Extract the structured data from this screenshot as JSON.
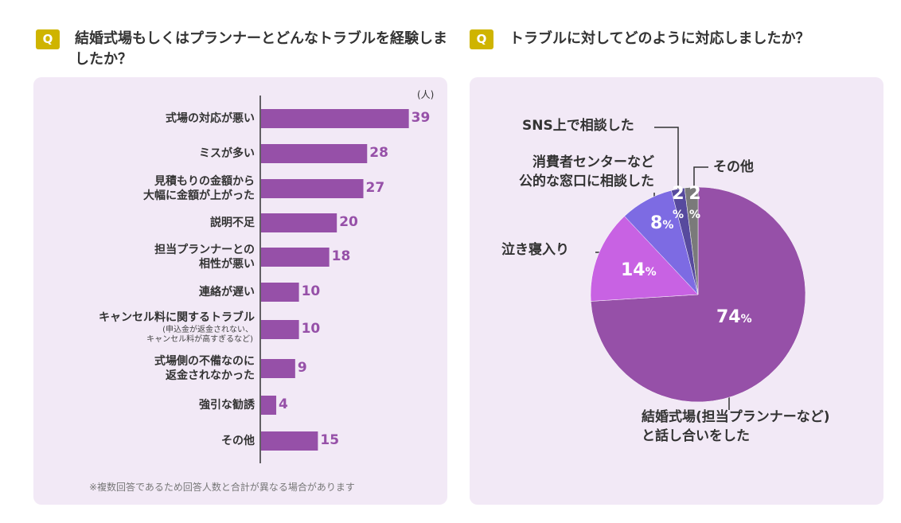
{
  "badge": "Q",
  "chart_data": [
    {
      "type": "hbar",
      "title": "結婚式場もしくはプランナーとどんなトラブルを経験しましたか？",
      "unit_label": "(人)",
      "categories": [
        "式場の対応が悪い",
        "ミスが多い",
        "見積もりの金額から\n大幅に金額が上がった",
        "説明不足",
        "担当プランナーとの\n相性が悪い",
        "連絡が遅い",
        "キャンセル料に関するトラブル",
        "式場側の不備なのに\n返金されなかった",
        "強引な勧誘",
        "その他"
      ],
      "sublabels": [
        null,
        null,
        null,
        null,
        null,
        null,
        "(申込金が返金されない、\nキャンセル料が高すぎるなど)",
        null,
        null,
        null
      ],
      "values": [
        39,
        28,
        27,
        20,
        18,
        10,
        10,
        9,
        4,
        15
      ],
      "color": "#9650a8",
      "xlim": [
        0,
        50
      ],
      "footnote": "※複数回答であるため回答人数と合計が異なる場合があります"
    },
    {
      "type": "pie",
      "title": "トラブルに対してどのように対応しましたか？",
      "categories": [
        "結婚式場(担当プランナーなど)\nと話し合いをした",
        "泣き寝入り",
        "消費者センターなど\n公的な窓口に相談した",
        "SNS上で相談した",
        "その他"
      ],
      "values": [
        74,
        14,
        8,
        2,
        2
      ],
      "unit": "%",
      "colors": [
        "#9650a8",
        "#c862e3",
        "#7d6be3",
        "#574a9e",
        "#7a7a7a"
      ]
    }
  ]
}
